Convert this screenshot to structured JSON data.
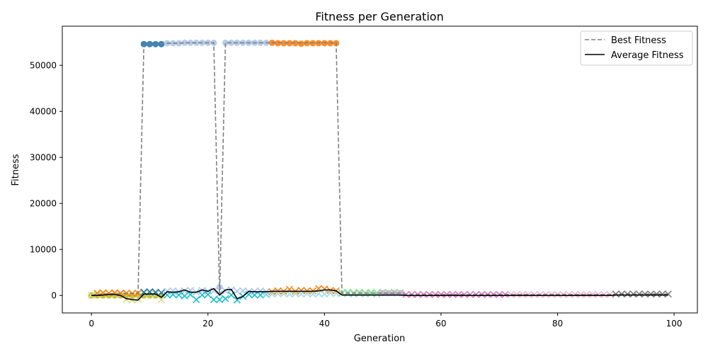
{
  "chart_data": {
    "type": "line",
    "title": "Fitness per Generation",
    "xlabel": "Generation",
    "ylabel": "Fitness",
    "xlim": [
      -5,
      104
    ],
    "ylim": [
      -3800,
      58500
    ],
    "xticks": [
      0,
      20,
      40,
      60,
      80,
      100
    ],
    "yticks": [
      0,
      10000,
      20000,
      30000,
      40000,
      50000
    ],
    "grid": false,
    "legend_position": "top-right",
    "series": [
      {
        "name": "Best Fitness",
        "style": "dashed",
        "color": "#808080",
        "x": [
          0,
          1,
          2,
          3,
          4,
          5,
          6,
          7,
          8,
          9,
          10,
          11,
          12,
          13,
          14,
          15,
          16,
          17,
          18,
          19,
          20,
          21,
          22,
          23,
          24,
          25,
          26,
          27,
          28,
          29,
          30,
          31,
          32,
          33,
          34,
          35,
          36,
          37,
          38,
          39,
          40,
          41,
          42,
          43,
          44,
          45,
          46,
          47,
          48,
          49,
          50,
          51,
          52,
          53,
          54,
          55,
          56,
          57,
          58,
          59,
          60,
          61,
          62,
          63,
          64,
          65,
          66,
          67,
          68,
          69,
          70,
          71,
          72,
          73,
          74,
          75,
          76,
          77,
          78,
          79,
          80,
          81,
          82,
          83,
          84,
          85,
          86,
          87,
          88,
          89,
          90,
          91,
          92,
          93,
          94,
          95,
          96,
          97,
          98,
          99
        ],
        "y": [
          0,
          200,
          300,
          350,
          400,
          420,
          450,
          480,
          500,
          54600,
          54600,
          54600,
          54600,
          54800,
          54800,
          54800,
          54900,
          54900,
          54900,
          54900,
          54900,
          54900,
          0,
          54900,
          54900,
          54900,
          54900,
          54900,
          54900,
          54900,
          54900,
          54900,
          54900,
          54900,
          54900,
          54900,
          54900,
          54900,
          54900,
          54900,
          54900,
          54900,
          54900,
          500,
          500,
          500,
          500,
          500,
          500,
          500,
          500,
          500,
          500,
          500,
          200,
          200,
          200,
          200,
          200,
          200,
          200,
          200,
          200,
          200,
          200,
          200,
          200,
          200,
          200,
          200,
          200,
          200,
          200,
          200,
          200,
          200,
          200,
          200,
          200,
          200,
          200,
          200,
          200,
          200,
          200,
          200,
          200,
          200,
          200,
          200,
          300,
          300,
          300,
          300,
          300,
          300,
          300,
          300,
          300,
          300
        ]
      },
      {
        "name": "Average Fitness",
        "style": "solid",
        "color": "#000000",
        "x": [
          0,
          1,
          2,
          3,
          4,
          5,
          6,
          7,
          8,
          9,
          10,
          11,
          12,
          13,
          14,
          15,
          16,
          17,
          18,
          19,
          20,
          21,
          22,
          23,
          24,
          25,
          26,
          27,
          28,
          29,
          30,
          31,
          32,
          33,
          34,
          35,
          36,
          37,
          38,
          39,
          40,
          41,
          42,
          43,
          44,
          45,
          46,
          47,
          48,
          49,
          50,
          51,
          52,
          53,
          54,
          55,
          56,
          57,
          58,
          59,
          60,
          61,
          62,
          63,
          64,
          65,
          66,
          67,
          68,
          69,
          70,
          71,
          72,
          73,
          74,
          75,
          76,
          77,
          78,
          79,
          80,
          81,
          82,
          83,
          84,
          85,
          86,
          87,
          88,
          89,
          90,
          91,
          92,
          93,
          94,
          95,
          96,
          97,
          98,
          99
        ],
        "y": [
          0,
          0,
          100,
          200,
          200,
          0,
          -700,
          -900,
          -1000,
          300,
          300,
          300,
          -400,
          800,
          700,
          800,
          1200,
          700,
          700,
          1200,
          900,
          1500,
          100,
          1200,
          1300,
          -700,
          -200,
          900,
          800,
          800,
          800,
          900,
          900,
          900,
          900,
          900,
          900,
          900,
          900,
          1000,
          1200,
          1200,
          1000,
          100,
          100,
          100,
          100,
          100,
          100,
          100,
          100,
          100,
          100,
          100,
          0,
          0,
          0,
          0,
          0,
          0,
          0,
          0,
          0,
          0,
          0,
          0,
          0,
          0,
          0,
          0,
          0,
          0,
          0,
          0,
          0,
          0,
          0,
          0,
          0,
          0,
          0,
          0,
          0,
          0,
          0,
          0,
          0,
          0,
          0,
          0,
          100,
          100,
          100,
          100,
          100,
          100,
          100,
          100,
          100,
          100
        ]
      }
    ],
    "scatter_groups": [
      {
        "color": "#bcbd22",
        "marker": "circle",
        "x": [
          0,
          1,
          2,
          3,
          4,
          5,
          6,
          7,
          8,
          9,
          10,
          11,
          12
        ],
        "y": [
          0,
          0,
          0,
          0,
          0,
          0,
          0,
          0,
          0,
          0,
          0,
          0,
          0
        ]
      },
      {
        "color": "#dbdb8d",
        "marker": "x",
        "x": [
          0,
          1,
          2,
          3,
          4,
          5,
          6,
          7,
          8,
          9,
          10,
          11,
          12
        ],
        "y": [
          0,
          200,
          300,
          400,
          300,
          200,
          -900,
          -1000,
          -800,
          400,
          500,
          300,
          -900
        ]
      },
      {
        "color": "#ff7f0e",
        "marker": "x",
        "x": [
          1,
          2,
          3,
          4,
          5,
          6,
          7,
          8
        ],
        "y": [
          500,
          600,
          500,
          600,
          500,
          500,
          400,
          500
        ]
      },
      {
        "color": "#1f77b4",
        "marker": "circle",
        "x": [
          9,
          10,
          11,
          12
        ],
        "y": [
          54600,
          54600,
          54600,
          54600
        ]
      },
      {
        "color": "#1f77b4",
        "marker": "x",
        "x": [
          9,
          10,
          11,
          12
        ],
        "y": [
          700,
          800,
          700,
          600
        ]
      },
      {
        "color": "#aec7e8",
        "marker": "circle",
        "x": [
          13,
          14,
          15,
          16,
          17,
          18,
          19,
          20,
          21,
          23,
          24,
          25,
          26,
          27,
          28,
          29,
          30,
          22
        ],
        "y": [
          54800,
          54800,
          54800,
          54900,
          54900,
          54900,
          54900,
          54900,
          54900,
          54900,
          54900,
          54900,
          54900,
          54900,
          54900,
          54900,
          54900,
          1800
        ]
      },
      {
        "color": "#aec7e8",
        "marker": "x",
        "x": [
          13,
          14,
          15,
          16,
          17,
          18,
          19,
          20,
          21,
          22,
          23,
          24,
          25,
          26,
          27,
          28,
          29,
          30
        ],
        "y": [
          900,
          1000,
          800,
          1000,
          1100,
          700,
          1100,
          900,
          1000,
          400,
          1000,
          1200,
          900,
          1000,
          800,
          900,
          1000,
          800
        ]
      },
      {
        "color": "#17becf",
        "marker": "x",
        "x": [
          13,
          14,
          15,
          16,
          17,
          18,
          19,
          20,
          21,
          22,
          23,
          24,
          25,
          26,
          27,
          28,
          29,
          30
        ],
        "y": [
          100,
          200,
          100,
          -100,
          200,
          -900,
          100,
          200,
          -900,
          -900,
          -700,
          100,
          -1000,
          -200,
          200,
          100,
          100,
          200
        ]
      },
      {
        "color": "#ff7f0e",
        "marker": "circle",
        "x": [
          31,
          32,
          33,
          34,
          35,
          36,
          37,
          38,
          39,
          40,
          41,
          42
        ],
        "y": [
          54900,
          54800,
          54800,
          54800,
          54800,
          54700,
          54800,
          54800,
          54800,
          54800,
          54800,
          54800
        ]
      },
      {
        "color": "#ff7f0e",
        "marker": "x",
        "x": [
          31,
          32,
          33,
          34,
          35,
          36,
          37,
          38,
          39,
          40,
          41,
          42
        ],
        "y": [
          800,
          1000,
          900,
          1300,
          900,
          1100,
          1000,
          1000,
          1500,
          1400,
          1100,
          1000
        ]
      },
      {
        "color": "#9edae5",
        "marker": "x",
        "x": [
          30,
          31,
          32,
          33,
          34,
          35,
          36,
          37,
          38,
          39,
          40,
          41,
          42,
          43,
          44,
          45,
          46,
          47,
          48,
          49
        ],
        "y": [
          300,
          300,
          400,
          400,
          300,
          400,
          300,
          400,
          300,
          400,
          300,
          500,
          400,
          400,
          400,
          300,
          400,
          300,
          400,
          300
        ]
      },
      {
        "color": "#98df8a",
        "marker": "x",
        "x": [
          43,
          44,
          45,
          46,
          47,
          48,
          49,
          50,
          51,
          52,
          53
        ],
        "y": [
          600,
          700,
          600,
          700,
          600,
          700,
          600,
          700,
          600,
          700,
          600
        ]
      },
      {
        "color": "#c5b0d5",
        "marker": "circle",
        "x": [
          50,
          51,
          52,
          53
        ],
        "y": [
          500,
          500,
          500,
          500
        ]
      },
      {
        "color": "#e377c2",
        "marker": "x",
        "x": [
          54,
          55,
          56,
          57,
          58,
          59,
          60,
          61,
          62,
          63,
          64,
          65,
          66,
          67,
          68,
          69,
          70,
          71
        ],
        "y": [
          200,
          200,
          200,
          200,
          200,
          200,
          200,
          200,
          200,
          200,
          200,
          200,
          200,
          200,
          200,
          200,
          200,
          200
        ]
      },
      {
        "color": "#f7b6d2",
        "marker": "x",
        "x": [
          72,
          73,
          74,
          75,
          76,
          77,
          78,
          79,
          80,
          81,
          82,
          83,
          84,
          85,
          86,
          87,
          88,
          89
        ],
        "y": [
          200,
          200,
          200,
          200,
          200,
          200,
          200,
          200,
          200,
          200,
          200,
          200,
          200,
          200,
          200,
          200,
          200,
          200
        ]
      },
      {
        "color": "#7f7f7f",
        "marker": "x",
        "x": [
          90,
          91,
          92,
          93,
          94,
          95,
          96,
          97,
          98,
          99
        ],
        "y": [
          300,
          300,
          300,
          300,
          300,
          300,
          300,
          300,
          300,
          300
        ]
      }
    ]
  }
}
